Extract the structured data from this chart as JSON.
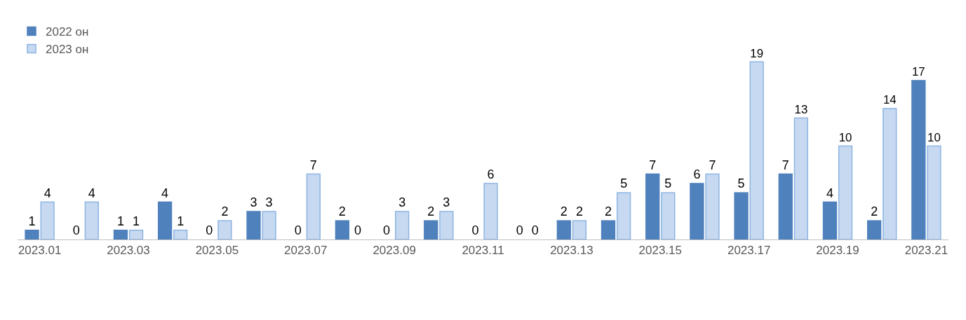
{
  "chart_data": {
    "type": "bar",
    "categories": [
      "2023.01",
      null,
      "2023.03",
      null,
      "2023.05",
      null,
      "2023.07",
      null,
      "2023.09",
      null,
      "2023.11",
      null,
      "2023.13",
      null,
      "2023.15",
      null,
      "2023.17",
      null,
      "2023.19",
      null,
      "2023.21"
    ],
    "series": [
      {
        "name": "2022 он",
        "color": "#4f81bd",
        "values": [
          1,
          0,
          1,
          4,
          0,
          3,
          0,
          2,
          0,
          2,
          0,
          0,
          2,
          2,
          7,
          6,
          5,
          7,
          4,
          2,
          17
        ]
      },
      {
        "name": "2023 он",
        "color": "#c6d9f0",
        "values": [
          4,
          4,
          1,
          1,
          2,
          3,
          7,
          0,
          3,
          3,
          6,
          0,
          2,
          5,
          5,
          7,
          19,
          13,
          10,
          14,
          10
        ]
      }
    ],
    "data_labels": true,
    "legend": "top left"
  }
}
